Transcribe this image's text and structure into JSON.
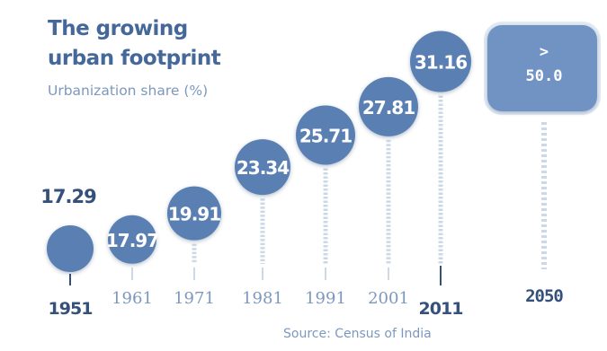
{
  "title_lines": [
    "The growing",
    "urban footprint"
  ],
  "subtitle": "Urbanization share (%)",
  "source": "Source: Census of India",
  "colors": {
    "bubble": "#5a7fb3",
    "bubble_highlight": "#6f93c4",
    "title": "#45689a",
    "label_light": "#7d98bd",
    "label_dark": "#34517c",
    "leader": "#cdd8e7"
  },
  "chart_data": {
    "type": "scatter",
    "title": "The growing urban footprint",
    "subtitle": "Urbanization share (%)",
    "x": [
      "1951",
      "1961",
      "1971",
      "1981",
      "1991",
      "2001",
      "2011",
      "2050"
    ],
    "labels": [
      "17.29",
      "17.97",
      "19.91",
      "23.34",
      "25.71",
      "27.81",
      "31.16",
      "> 50.0"
    ],
    "values": [
      17.29,
      17.97,
      19.91,
      23.34,
      25.71,
      27.81,
      31.16,
      50.0
    ],
    "bold_years": [
      "1951",
      "2011",
      "2050"
    ],
    "projected": [
      "2050"
    ],
    "source": "Source: Census of India"
  }
}
